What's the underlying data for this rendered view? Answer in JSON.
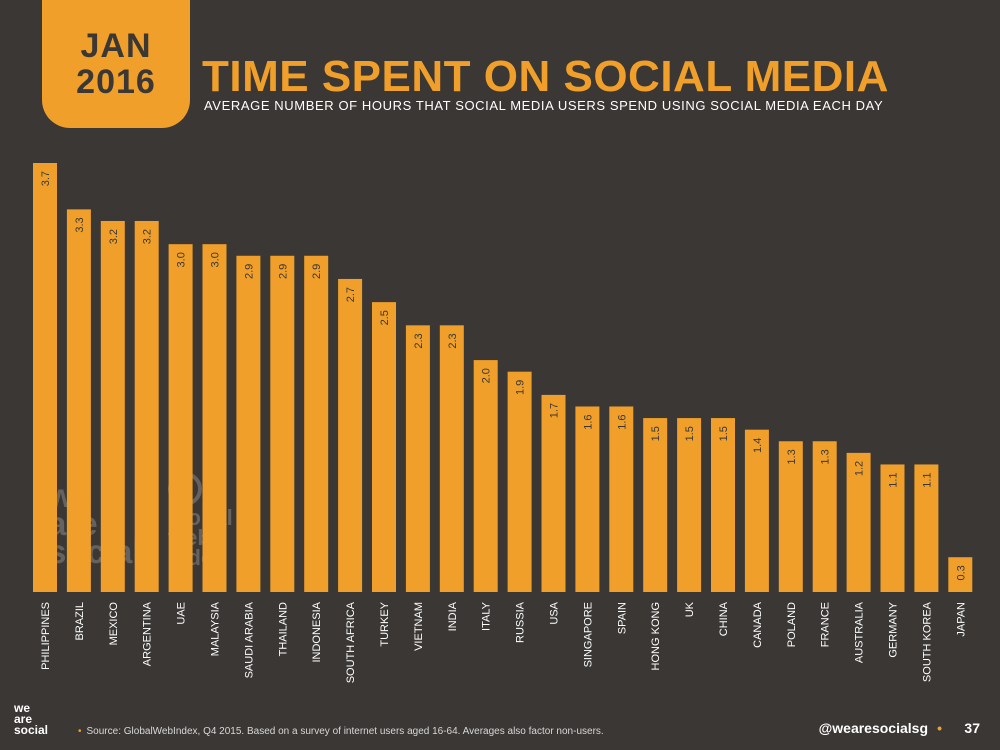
{
  "badge": {
    "month": "JAN",
    "year": "2016"
  },
  "header": {
    "title": "TIME SPENT ON SOCIAL MEDIA",
    "subtitle": "AVERAGE NUMBER OF HOURS THAT SOCIAL MEDIA USERS SPEND USING SOCIAL MEDIA EACH DAY"
  },
  "watermarks": {
    "we_are_social": [
      "we",
      "are",
      "social"
    ],
    "global_web_index": [
      "global",
      "web",
      "index"
    ]
  },
  "footer": {
    "logo_lines": [
      "we",
      "are",
      "social"
    ],
    "source": "Source: GlobalWebIndex, Q4 2015. Based on a survey of internet users aged 16-64. Averages also factor non-users.",
    "handle": "@wearesocialsg",
    "separator": "•",
    "page_number": "37"
  },
  "colors": {
    "bar": "#f0a02a",
    "background": "#3a3735",
    "label": "#3a3735",
    "axis_text": "#ffffff"
  },
  "chart_data": {
    "type": "bar",
    "categories": [
      "PHILIPPINES",
      "BRAZIL",
      "MEXICO",
      "ARGENTINA",
      "UAE",
      "MALAYSIA",
      "SAUDI ARABIA",
      "THAILAND",
      "INDONESIA",
      "SOUTH AFRICA",
      "TURKEY",
      "VIETNAM",
      "INDIA",
      "ITALY",
      "RUSSIA",
      "USA",
      "SINGAPORE",
      "SPAIN",
      "HONG KONG",
      "UK",
      "CHINA",
      "CANADA",
      "POLAND",
      "FRANCE",
      "AUSTRALIA",
      "GERMANY",
      "SOUTH KOREA",
      "JAPAN"
    ],
    "values": [
      3.7,
      3.3,
      3.2,
      3.2,
      3.0,
      3.0,
      2.9,
      2.9,
      2.9,
      2.7,
      2.5,
      2.3,
      2.3,
      2.0,
      1.9,
      1.7,
      1.6,
      1.6,
      1.5,
      1.5,
      1.5,
      1.4,
      1.3,
      1.3,
      1.2,
      1.1,
      1.1,
      0.3
    ],
    "labels": [
      "3.7",
      "3.3",
      "3.2",
      "3.2",
      "3.0",
      "3.0",
      "2.9",
      "2.9",
      "2.9",
      "2.7",
      "2.5",
      "2.3",
      "2.3",
      "2.0",
      "1.9",
      "1.7",
      "1.6",
      "1.6",
      "1.5",
      "1.5",
      "1.5",
      "1.4",
      "1.3",
      "1.3",
      "1.2",
      "1.1",
      "1.1",
      "0.3"
    ],
    "ylim": [
      0,
      3.7
    ],
    "grid": false
  }
}
